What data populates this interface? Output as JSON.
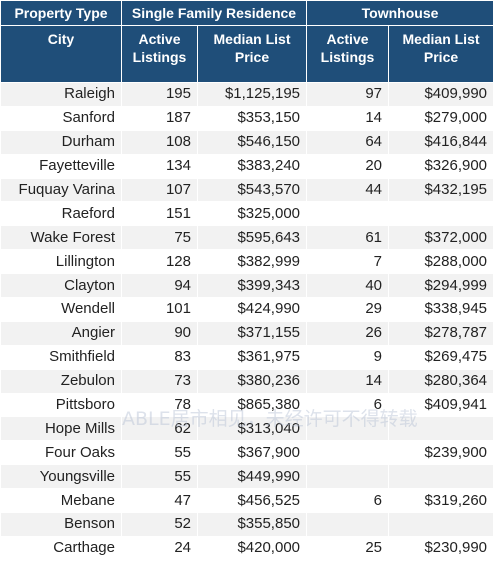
{
  "header": {
    "property_type": "Property Type",
    "sfr_group": "Single Family Residence",
    "townhouse_group": "Townhouse",
    "city": "City",
    "active_listings": "Active Listings",
    "median_list_price": "Median List Price"
  },
  "rows": [
    {
      "city": "Raleigh",
      "sfr_active": "195",
      "sfr_price": "$1,125,195",
      "th_active": "97",
      "th_price": "$409,990"
    },
    {
      "city": "Sanford",
      "sfr_active": "187",
      "sfr_price": "$353,150",
      "th_active": "14",
      "th_price": "$279,000"
    },
    {
      "city": "Durham",
      "sfr_active": "108",
      "sfr_price": "$546,150",
      "th_active": "64",
      "th_price": "$416,844"
    },
    {
      "city": "Fayetteville",
      "sfr_active": "134",
      "sfr_price": "$383,240",
      "th_active": "20",
      "th_price": "$326,900"
    },
    {
      "city": "Fuquay Varina",
      "sfr_active": "107",
      "sfr_price": "$543,570",
      "th_active": "44",
      "th_price": "$432,195"
    },
    {
      "city": "Raeford",
      "sfr_active": "151",
      "sfr_price": "$325,000",
      "th_active": "",
      "th_price": ""
    },
    {
      "city": "Wake Forest",
      "sfr_active": "75",
      "sfr_price": "$595,643",
      "th_active": "61",
      "th_price": "$372,000"
    },
    {
      "city": "Lillington",
      "sfr_active": "128",
      "sfr_price": "$382,999",
      "th_active": "7",
      "th_price": "$288,000"
    },
    {
      "city": "Clayton",
      "sfr_active": "94",
      "sfr_price": "$399,343",
      "th_active": "40",
      "th_price": "$294,999"
    },
    {
      "city": "Wendell",
      "sfr_active": "101",
      "sfr_price": "$424,990",
      "th_active": "29",
      "th_price": "$338,945"
    },
    {
      "city": "Angier",
      "sfr_active": "90",
      "sfr_price": "$371,155",
      "th_active": "26",
      "th_price": "$278,787"
    },
    {
      "city": "Smithfield",
      "sfr_active": "83",
      "sfr_price": "$361,975",
      "th_active": "9",
      "th_price": "$269,475"
    },
    {
      "city": "Zebulon",
      "sfr_active": "73",
      "sfr_price": "$380,236",
      "th_active": "14",
      "th_price": "$280,364"
    },
    {
      "city": "Pittsboro",
      "sfr_active": "78",
      "sfr_price": "$865,380",
      "th_active": "6",
      "th_price": "$409,941"
    },
    {
      "city": "Hope Mills",
      "sfr_active": "62",
      "sfr_price": "$313,040",
      "th_active": "",
      "th_price": ""
    },
    {
      "city": "Four Oaks",
      "sfr_active": "55",
      "sfr_price": "$367,900",
      "th_active": "",
      "th_price": "$239,900"
    },
    {
      "city": "Youngsville",
      "sfr_active": "55",
      "sfr_price": "$449,990",
      "th_active": "",
      "th_price": ""
    },
    {
      "city": "Mebane",
      "sfr_active": "47",
      "sfr_price": "$456,525",
      "th_active": "6",
      "th_price": "$319,260"
    },
    {
      "city": "Benson",
      "sfr_active": "52",
      "sfr_price": "$355,850",
      "th_active": "",
      "th_price": ""
    },
    {
      "city": "Carthage",
      "sfr_active": "24",
      "sfr_price": "$420,000",
      "th_active": "25",
      "th_price": "$230,990"
    }
  ],
  "watermark": "ABLE居市相见，未经许可不得转载"
}
